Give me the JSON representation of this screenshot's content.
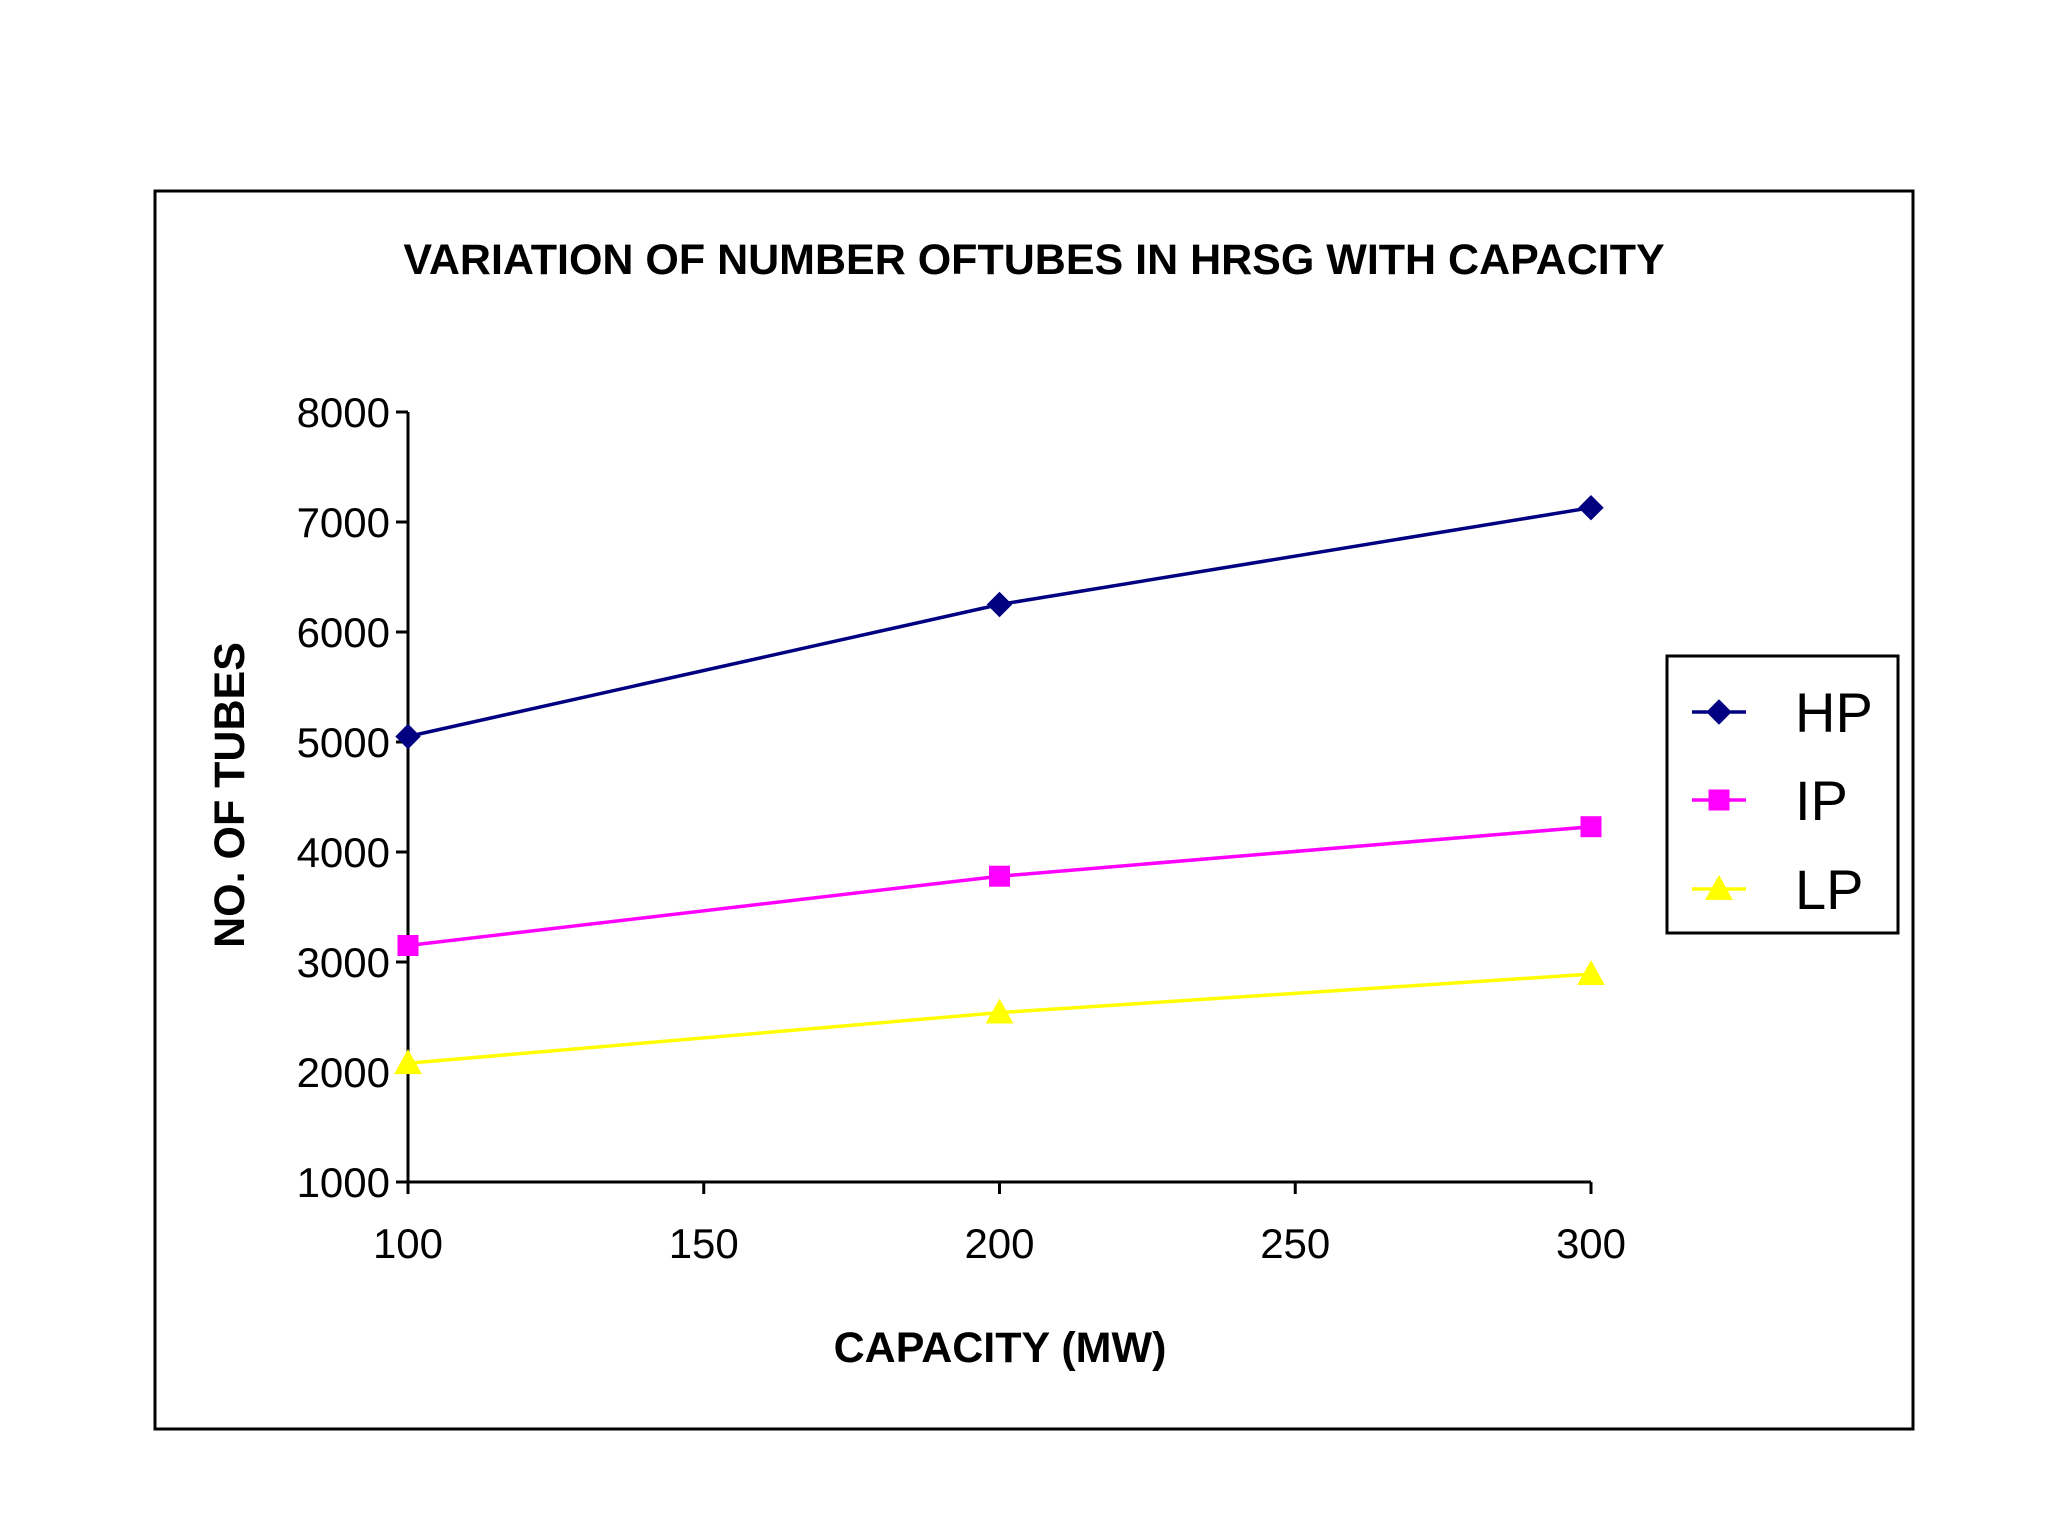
{
  "chart_data": {
    "type": "line",
    "title": "VARIATION OF NUMBER OFTUBES IN HRSG WITH CAPACITY",
    "xlabel": "CAPACITY (MW)",
    "ylabel": "NO. OF TUBES",
    "xlim": [
      100,
      300
    ],
    "ylim": [
      1000,
      8000
    ],
    "xticks": [
      100,
      150,
      200,
      250,
      300
    ],
    "yticks": [
      1000,
      2000,
      3000,
      4000,
      5000,
      6000,
      7000,
      8000
    ],
    "grid": false,
    "legend_position": "right",
    "x": [
      100,
      200,
      300
    ],
    "series": [
      {
        "name": "HP",
        "values": [
          5050,
          6250,
          7130
        ],
        "color": "#000080",
        "marker": "diamond"
      },
      {
        "name": "IP",
        "values": [
          3150,
          3780,
          4230
        ],
        "color": "#ff00ff",
        "marker": "square"
      },
      {
        "name": "LP",
        "values": [
          2080,
          2540,
          2890
        ],
        "color": "#ffff00",
        "marker": "triangle"
      }
    ]
  }
}
